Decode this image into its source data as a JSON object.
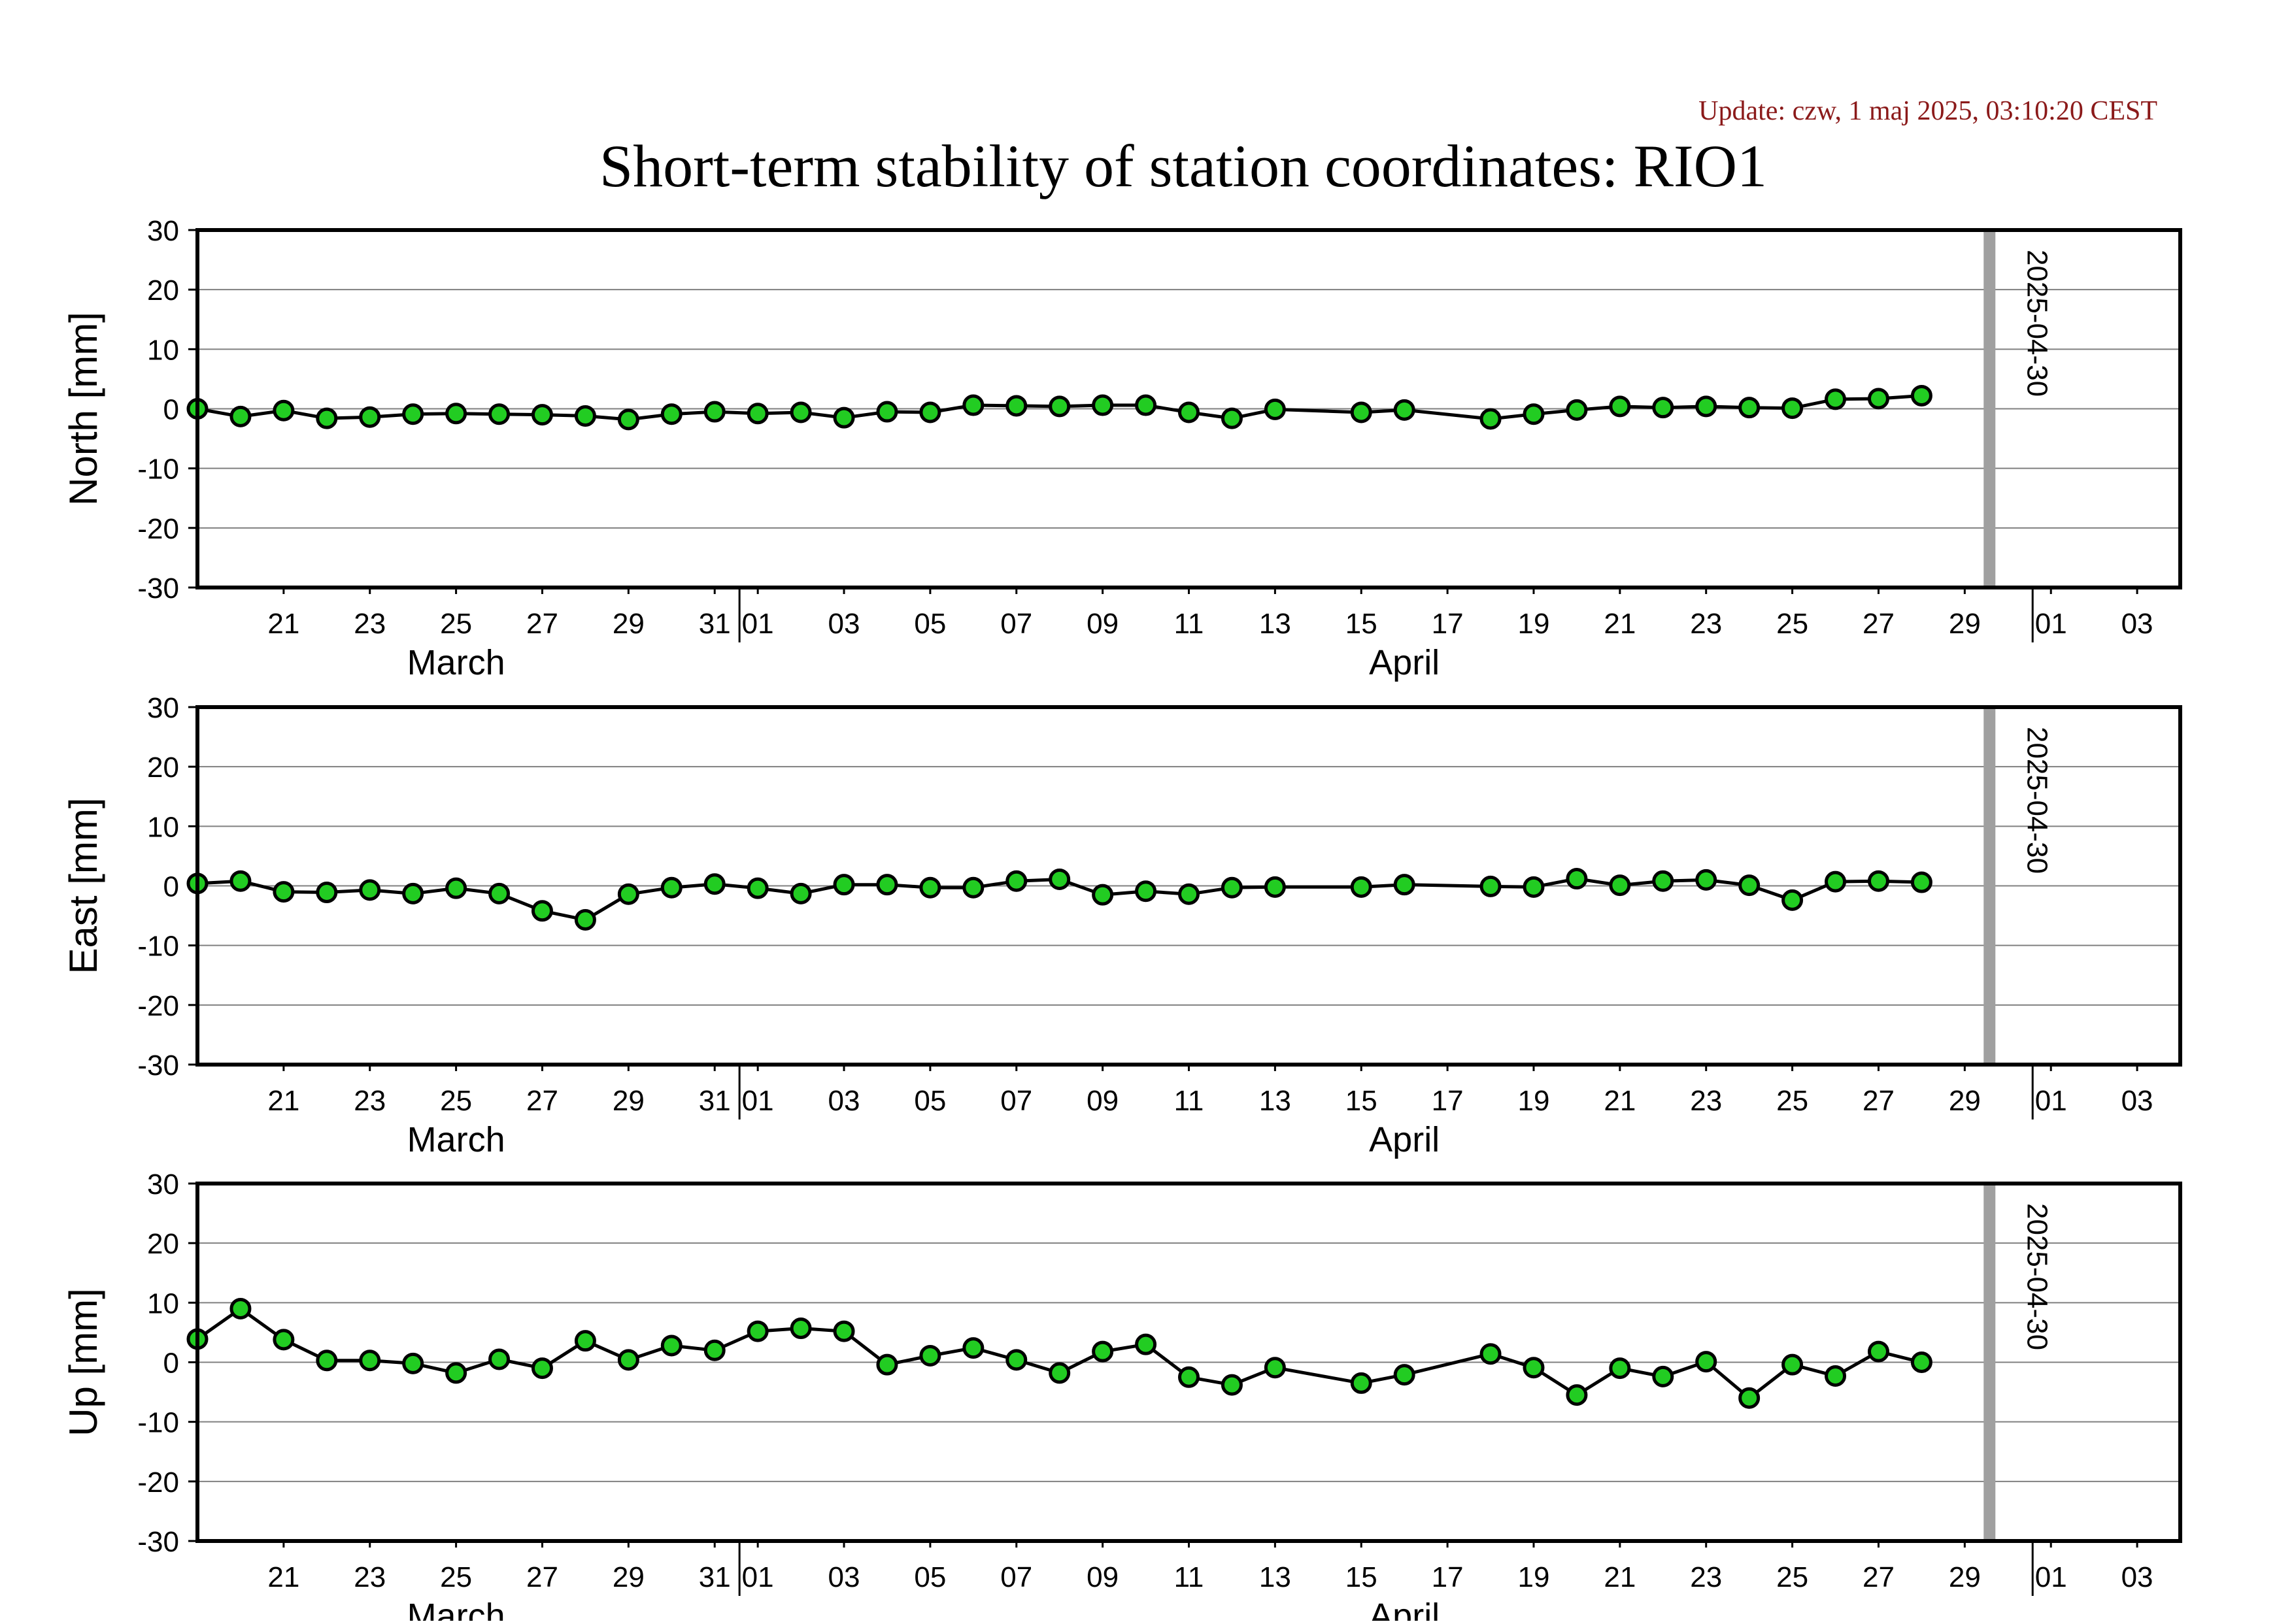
{
  "update_text": "Update: czw, 1 maj 2025, 03:10:20 CEST",
  "title": "Short-term stability of station coordinates: RIO1",
  "colors": {
    "update_text": "#8b1a1a",
    "marker_fill": "#22cc22",
    "marker_stroke": "#000000",
    "line": "#000000",
    "grid": "#808080",
    "reference_line": "#a0a0a0"
  },
  "x_axis": {
    "start": "2025-03-19",
    "end": "2025-05-04",
    "tick_labels": [
      {
        "date": "2025-03-21",
        "label": "21"
      },
      {
        "date": "2025-03-23",
        "label": "23"
      },
      {
        "date": "2025-03-25",
        "label": "25"
      },
      {
        "date": "2025-03-27",
        "label": "27"
      },
      {
        "date": "2025-03-29",
        "label": "29"
      },
      {
        "date": "2025-03-31",
        "label": "31"
      },
      {
        "date": "2025-04-01",
        "label": "01"
      },
      {
        "date": "2025-04-03",
        "label": "03"
      },
      {
        "date": "2025-04-05",
        "label": "05"
      },
      {
        "date": "2025-04-07",
        "label": "07"
      },
      {
        "date": "2025-04-09",
        "label": "09"
      },
      {
        "date": "2025-04-11",
        "label": "11"
      },
      {
        "date": "2025-04-13",
        "label": "13"
      },
      {
        "date": "2025-04-15",
        "label": "15"
      },
      {
        "date": "2025-04-17",
        "label": "17"
      },
      {
        "date": "2025-04-19",
        "label": "19"
      },
      {
        "date": "2025-04-21",
        "label": "21"
      },
      {
        "date": "2025-04-23",
        "label": "23"
      },
      {
        "date": "2025-04-25",
        "label": "25"
      },
      {
        "date": "2025-04-27",
        "label": "27"
      },
      {
        "date": "2025-04-29",
        "label": "29"
      },
      {
        "date": "2025-05-01",
        "label": "01"
      },
      {
        "date": "2025-05-03",
        "label": "03"
      }
    ],
    "month_boundaries": [
      "2025-04-01",
      "2025-05-01"
    ],
    "month_labels": [
      {
        "date": "2025-03-25",
        "label": "March"
      },
      {
        "date": "2025-04-16",
        "label": "April"
      }
    ]
  },
  "reference_line": {
    "date": "2025-04-30",
    "label": "2025-04-30"
  },
  "chart_data": [
    {
      "type": "line",
      "ylabel": "North [mm]",
      "ylim": [
        -30,
        30
      ],
      "yticks": [
        30,
        20,
        10,
        0,
        -10,
        -20,
        -30
      ],
      "grid": true,
      "x": [
        "2025-03-19",
        "2025-03-20",
        "2025-03-21",
        "2025-03-22",
        "2025-03-23",
        "2025-03-24",
        "2025-03-25",
        "2025-03-26",
        "2025-03-27",
        "2025-03-28",
        "2025-03-29",
        "2025-03-30",
        "2025-03-31",
        "2025-04-01",
        "2025-04-02",
        "2025-04-03",
        "2025-04-04",
        "2025-04-05",
        "2025-04-06",
        "2025-04-07",
        "2025-04-08",
        "2025-04-09",
        "2025-04-10",
        "2025-04-11",
        "2025-04-12",
        "2025-04-13",
        "2025-04-15",
        "2025-04-16",
        "2025-04-18",
        "2025-04-19",
        "2025-04-20",
        "2025-04-21",
        "2025-04-22",
        "2025-04-23",
        "2025-04-24",
        "2025-04-25",
        "2025-04-26",
        "2025-04-27",
        "2025-04-28"
      ],
      "y": [
        0.0,
        -1.3,
        -0.3,
        -1.6,
        -1.4,
        -0.9,
        -0.8,
        -0.9,
        -1.0,
        -1.2,
        -1.8,
        -0.9,
        -0.5,
        -0.8,
        -0.6,
        -1.5,
        -0.5,
        -0.6,
        0.6,
        0.5,
        0.4,
        0.6,
        0.6,
        -0.6,
        -1.6,
        -0.1,
        -0.6,
        -0.2,
        -1.7,
        -0.9,
        -0.2,
        0.4,
        0.2,
        0.4,
        0.2,
        0.1,
        1.6,
        1.7,
        2.2
      ]
    },
    {
      "type": "line",
      "ylabel": "East [mm]",
      "ylim": [
        -30,
        30
      ],
      "yticks": [
        30,
        20,
        10,
        0,
        -10,
        -20,
        -30
      ],
      "grid": true,
      "x": [
        "2025-03-19",
        "2025-03-20",
        "2025-03-21",
        "2025-03-22",
        "2025-03-23",
        "2025-03-24",
        "2025-03-25",
        "2025-03-26",
        "2025-03-27",
        "2025-03-28",
        "2025-03-29",
        "2025-03-30",
        "2025-03-31",
        "2025-04-01",
        "2025-04-02",
        "2025-04-03",
        "2025-04-04",
        "2025-04-05",
        "2025-04-06",
        "2025-04-07",
        "2025-04-08",
        "2025-04-09",
        "2025-04-10",
        "2025-04-11",
        "2025-04-12",
        "2025-04-13",
        "2025-04-15",
        "2025-04-16",
        "2025-04-18",
        "2025-04-19",
        "2025-04-20",
        "2025-04-21",
        "2025-04-22",
        "2025-04-23",
        "2025-04-24",
        "2025-04-25",
        "2025-04-26",
        "2025-04-27",
        "2025-04-28"
      ],
      "y": [
        0.4,
        0.8,
        -1.0,
        -1.1,
        -0.7,
        -1.3,
        -0.4,
        -1.3,
        -4.2,
        -5.7,
        -1.4,
        -0.3,
        0.3,
        -0.4,
        -1.3,
        0.2,
        0.2,
        -0.3,
        -0.3,
        0.8,
        1.1,
        -1.5,
        -0.9,
        -1.4,
        -0.3,
        -0.2,
        -0.2,
        0.2,
        -0.1,
        -0.2,
        1.2,
        0.1,
        0.8,
        1.0,
        0.1,
        -2.4,
        0.7,
        0.8,
        0.6
      ]
    },
    {
      "type": "line",
      "ylabel": "Up [mm]",
      "ylim": [
        -30,
        30
      ],
      "yticks": [
        30,
        20,
        10,
        0,
        -10,
        -20,
        -30
      ],
      "grid": true,
      "x": [
        "2025-03-19",
        "2025-03-20",
        "2025-03-21",
        "2025-03-22",
        "2025-03-23",
        "2025-03-24",
        "2025-03-25",
        "2025-03-26",
        "2025-03-27",
        "2025-03-28",
        "2025-03-29",
        "2025-03-30",
        "2025-03-31",
        "2025-04-01",
        "2025-04-02",
        "2025-04-03",
        "2025-04-04",
        "2025-04-05",
        "2025-04-06",
        "2025-04-07",
        "2025-04-08",
        "2025-04-09",
        "2025-04-10",
        "2025-04-11",
        "2025-04-12",
        "2025-04-13",
        "2025-04-15",
        "2025-04-16",
        "2025-04-18",
        "2025-04-19",
        "2025-04-20",
        "2025-04-21",
        "2025-04-22",
        "2025-04-23",
        "2025-04-24",
        "2025-04-25",
        "2025-04-26",
        "2025-04-27",
        "2025-04-28"
      ],
      "y": [
        3.9,
        9.0,
        3.8,
        0.3,
        0.3,
        -0.2,
        -1.8,
        0.5,
        -1.0,
        3.6,
        0.4,
        2.8,
        2.0,
        5.2,
        5.7,
        5.2,
        -0.4,
        1.1,
        2.4,
        0.4,
        -1.8,
        1.8,
        3.0,
        -2.5,
        -3.8,
        -0.9,
        -3.5,
        -2.1,
        1.4,
        -0.9,
        -5.5,
        -1.0,
        -2.4,
        0.1,
        -6.0,
        -0.4,
        -2.3,
        1.8,
        0.0
      ]
    }
  ]
}
